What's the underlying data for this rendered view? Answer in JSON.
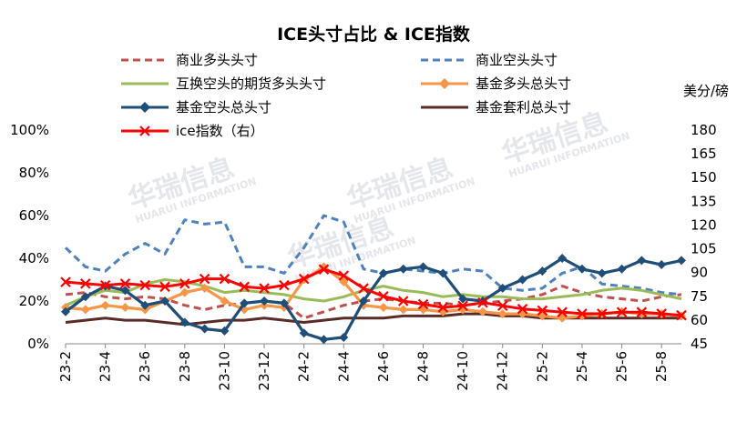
{
  "chart_data": {
    "type": "line",
    "title": "ICE头寸占比 & ICE指数",
    "y_unit_right": "美分/磅",
    "watermark": {
      "cn": "华瑞信息",
      "en": "HUARUI INFORMATION"
    },
    "x": [
      "23-2",
      "23-3",
      "23-4",
      "23-5",
      "23-6",
      "23-7",
      "23-8",
      "23-9",
      "23-10",
      "23-11",
      "23-12",
      "24-1",
      "24-2",
      "24-3",
      "24-4",
      "24-5",
      "24-6",
      "24-7",
      "24-8",
      "24-9",
      "24-10",
      "24-11",
      "24-12",
      "25-1",
      "25-2",
      "25-3",
      "25-4",
      "25-5",
      "25-6",
      "25-7",
      "25-8",
      "25-9"
    ],
    "x_tick_labels": [
      "23-2",
      "23-4",
      "23-6",
      "23-8",
      "23-10",
      "23-12",
      "24-2",
      "24-4",
      "24-6",
      "24-8",
      "24-10",
      "24-12",
      "25-2",
      "25-4",
      "25-6",
      "25-8"
    ],
    "y_left": {
      "min": 0,
      "max": 100,
      "ticks": [
        "0%",
        "20%",
        "40%",
        "60%",
        "80%",
        "100%"
      ]
    },
    "y_right": {
      "min": 45,
      "max": 180,
      "ticks": [
        "45",
        "60",
        "75",
        "90",
        "105",
        "120",
        "135",
        "150",
        "165",
        "180"
      ]
    },
    "grid": false,
    "legend_position": "top",
    "series": [
      {
        "name": "商业多头头寸",
        "axis": "left",
        "style": "dashed",
        "color": "#c0504d",
        "marker": "none",
        "values": [
          23,
          24,
          22,
          21,
          22,
          21,
          18,
          16,
          18,
          19,
          20,
          19,
          12,
          15,
          18,
          20,
          21,
          20,
          19,
          19,
          18,
          19,
          20,
          21,
          23,
          27,
          24,
          22,
          21,
          20,
          22,
          23
        ]
      },
      {
        "name": "商业空头头寸",
        "axis": "left",
        "style": "dashed",
        "color": "#4f81bd",
        "marker": "none",
        "values": [
          45,
          36,
          34,
          42,
          47,
          42,
          58,
          56,
          57,
          36,
          36,
          33,
          45,
          60,
          57,
          35,
          33,
          35,
          34,
          33,
          35,
          34,
          26,
          25,
          26,
          33,
          36,
          28,
          27,
          26,
          24,
          23
        ]
      },
      {
        "name": "互换空头的期货多头头寸",
        "axis": "left",
        "style": "solid",
        "color": "#9bbb59",
        "marker": "none",
        "values": [
          18,
          22,
          25,
          24,
          28,
          30,
          29,
          27,
          24,
          25,
          24,
          23,
          21,
          20,
          22,
          25,
          27,
          25,
          24,
          22,
          23,
          22,
          22,
          21,
          21,
          22,
          23,
          25,
          26,
          25,
          23,
          21
        ]
      },
      {
        "name": "基金多头总头寸",
        "axis": "left",
        "style": "solid",
        "color": "#f79646",
        "marker": "diamond",
        "values": [
          17,
          16,
          18,
          17,
          16,
          20,
          24,
          26,
          20,
          16,
          18,
          17,
          30,
          36,
          29,
          18,
          17,
          16,
          16,
          15,
          16,
          15,
          14,
          14,
          13,
          12,
          13,
          14,
          15,
          14,
          14,
          13
        ]
      },
      {
        "name": "基金空头总头寸",
        "axis": "left",
        "style": "solid",
        "color": "#1f4e79",
        "marker": "diamond",
        "values": [
          15,
          22,
          27,
          25,
          18,
          20,
          10,
          7,
          6,
          19,
          20,
          19,
          5,
          2,
          3,
          20,
          33,
          35,
          36,
          33,
          21,
          20,
          26,
          30,
          34,
          40,
          35,
          33,
          35,
          39,
          37,
          39
        ]
      },
      {
        "name": "基金套利总头寸",
        "axis": "left",
        "style": "solid",
        "color": "#5a2c28",
        "marker": "none",
        "values": [
          10,
          11,
          12,
          11,
          11,
          10,
          9,
          10,
          11,
          11,
          12,
          11,
          10,
          11,
          12,
          12,
          12,
          13,
          13,
          13,
          14,
          14,
          13,
          13,
          12,
          12,
          12,
          12,
          12,
          12,
          12,
          12
        ]
      },
      {
        "name": "ice指数（右）",
        "axis": "right",
        "style": "solid",
        "color": "#ff0000",
        "marker": "x",
        "values": [
          84,
          83,
          82,
          83,
          82,
          81,
          83,
          86,
          86,
          81,
          80,
          82,
          86,
          92,
          88,
          80,
          75,
          72,
          70,
          68,
          69,
          71,
          69,
          67,
          66,
          65,
          64,
          64,
          65,
          65,
          64,
          63
        ]
      }
    ]
  }
}
